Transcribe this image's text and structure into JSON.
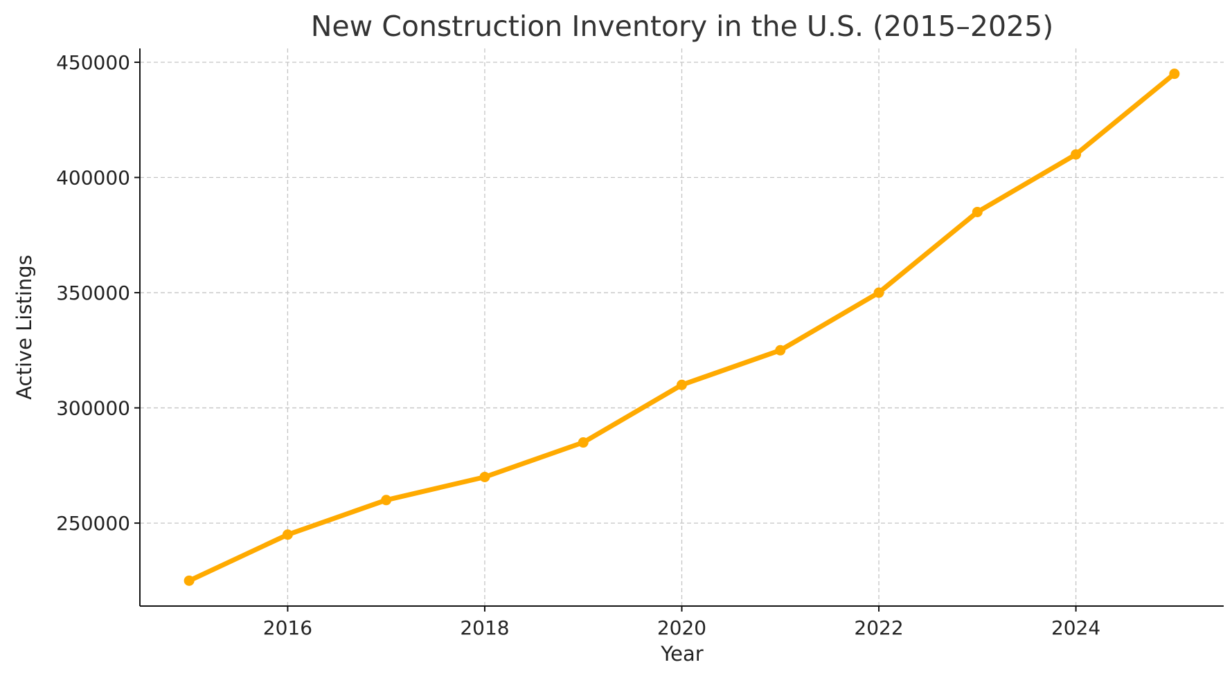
{
  "chart_data": {
    "type": "line",
    "title": "New Construction Inventory in the U.S. (2015–2025)",
    "xlabel": "Year",
    "ylabel": "Active Listings",
    "x": [
      2015,
      2016,
      2017,
      2018,
      2019,
      2020,
      2021,
      2022,
      2023,
      2024,
      2025
    ],
    "series": [
      {
        "values": [
          225000,
          245000,
          260000,
          270000,
          285000,
          310000,
          325000,
          350000,
          385000,
          410000,
          445000
        ]
      }
    ],
    "xlim": [
      2014.5,
      2025.5
    ],
    "ylim": [
      214000,
      456000
    ],
    "xticks": [
      2016,
      2018,
      2020,
      2022,
      2024
    ],
    "yticks": [
      250000,
      300000,
      350000,
      400000,
      450000
    ],
    "grid": true,
    "line_color": "#FFAA00",
    "marker": "circle"
  }
}
